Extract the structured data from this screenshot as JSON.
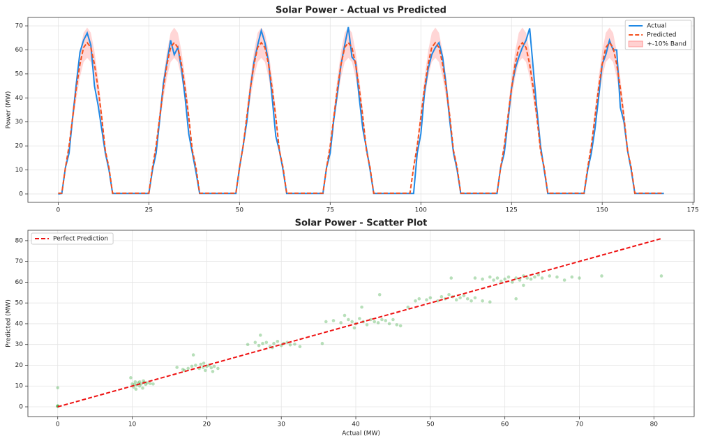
{
  "chart_data": [
    {
      "type": "line",
      "title": "Solar Power - Actual vs Predicted",
      "y_label": "Power (MW)",
      "x": [
        0,
        1,
        2,
        3,
        4,
        5,
        6,
        7,
        8,
        9,
        10,
        11,
        12,
        13,
        14,
        15,
        16,
        17,
        18,
        19,
        20,
        21,
        22,
        23,
        24,
        25,
        26,
        27,
        28,
        29,
        30,
        31,
        32,
        33,
        34,
        35,
        36,
        37,
        38,
        39,
        40,
        41,
        42,
        43,
        44,
        45,
        46,
        47,
        48,
        49,
        50,
        51,
        52,
        53,
        54,
        55,
        56,
        57,
        58,
        59,
        60,
        61,
        62,
        63,
        64,
        65,
        66,
        67,
        68,
        69,
        70,
        71,
        72,
        73,
        74,
        75,
        76,
        77,
        78,
        79,
        80,
        81,
        82,
        83,
        84,
        85,
        86,
        87,
        88,
        89,
        90,
        91,
        92,
        93,
        94,
        95,
        96,
        97,
        98,
        99,
        100,
        101,
        102,
        103,
        104,
        105,
        106,
        107,
        108,
        109,
        110,
        111,
        112,
        113,
        114,
        115,
        116,
        117,
        118,
        119,
        120,
        121,
        122,
        123,
        124,
        125,
        126,
        127,
        128,
        129,
        130,
        131,
        132,
        133,
        134,
        135,
        136,
        137,
        138,
        139,
        140,
        141,
        142,
        143,
        144,
        145,
        146,
        147,
        148,
        149,
        150,
        151,
        152,
        153,
        154,
        155,
        156,
        157,
        158,
        159,
        160,
        161,
        162,
        163,
        164,
        165,
        166,
        167
      ],
      "series": [
        {
          "name": "Actual",
          "color": "#1e88e5",
          "linestyle": "solid",
          "values": [
            0,
            0.2,
            11,
            17,
            32,
            46,
            59,
            64,
            67,
            62,
            45,
            37,
            27,
            17,
            10,
            0.2,
            0.2,
            0.2,
            0.2,
            0.2,
            0.2,
            0.2,
            0.2,
            0.2,
            0.2,
            0.2,
            10,
            17,
            31,
            46,
            55,
            64,
            58,
            61,
            52,
            40,
            25,
            17,
            9,
            0.2,
            0.2,
            0.2,
            0.2,
            0.2,
            0.2,
            0.2,
            0.2,
            0.2,
            0.2,
            0.2,
            11,
            20,
            30,
            44,
            55,
            62,
            68,
            63,
            55,
            40,
            24,
            18,
            10,
            0.2,
            0.2,
            0.2,
            0.2,
            0.2,
            0.2,
            0.2,
            0.2,
            0.2,
            0.2,
            0.2,
            11,
            17,
            31,
            42,
            54,
            62,
            69.5,
            57,
            55,
            40,
            27,
            19,
            10,
            0.2,
            0.2,
            0.2,
            0.2,
            0.2,
            0.2,
            0.2,
            0.2,
            0.2,
            0.2,
            0.2,
            0.2,
            17,
            25,
            42,
            52,
            58,
            61,
            63,
            57,
            45,
            30,
            17,
            10,
            0.2,
            0.2,
            0.2,
            0.2,
            0.2,
            0.2,
            0.2,
            0.2,
            0.2,
            0.2,
            0.2,
            11,
            17,
            30,
            44,
            52,
            57,
            61,
            64,
            69,
            52,
            35,
            20,
            10,
            0.2,
            0.2,
            0.2,
            0.2,
            0.2,
            0.2,
            0.2,
            0.2,
            0.2,
            0.2,
            0.2,
            10,
            17,
            27,
            40,
            54,
            58,
            64,
            60,
            60,
            36,
            30,
            18,
            10,
            0.2,
            0.2,
            0.2,
            0.2,
            0.2,
            0.2,
            0.2,
            0.2,
            0.2
          ]
        },
        {
          "name": "Predicted",
          "color": "#f4511e",
          "linestyle": "dashed",
          "values": [
            0.3,
            0.3,
            11,
            20,
            32,
            44,
            54,
            61,
            63,
            61,
            54,
            44,
            32,
            18,
            11,
            0.3,
            0.3,
            0.3,
            0.3,
            0.3,
            0.3,
            0.3,
            0.3,
            0.3,
            0.3,
            0.3,
            11,
            20,
            32,
            44,
            54,
            61,
            63,
            61,
            54,
            44,
            32,
            18,
            11,
            0.3,
            0.3,
            0.3,
            0.3,
            0.3,
            0.3,
            0.3,
            0.3,
            0.3,
            0.3,
            0.3,
            11,
            20,
            32,
            44,
            54,
            61,
            63,
            61,
            54,
            44,
            32,
            18,
            11,
            0.3,
            0.3,
            0.3,
            0.3,
            0.3,
            0.3,
            0.3,
            0.3,
            0.3,
            0.3,
            0.3,
            11,
            20,
            32,
            44,
            54,
            61,
            63,
            61,
            54,
            44,
            32,
            18,
            11,
            0.3,
            0.3,
            0.3,
            0.3,
            0.3,
            0.3,
            0.3,
            0.3,
            0.3,
            0.3,
            0.3,
            11,
            20,
            32,
            44,
            54,
            61,
            63,
            61,
            54,
            44,
            32,
            18,
            11,
            0.3,
            0.3,
            0.3,
            0.3,
            0.3,
            0.3,
            0.3,
            0.3,
            0.3,
            0.3,
            0.3,
            11,
            20,
            32,
            44,
            54,
            61,
            63,
            61,
            54,
            44,
            32,
            18,
            11,
            0.3,
            0.3,
            0.3,
            0.3,
            0.3,
            0.3,
            0.3,
            0.3,
            0.3,
            0.3,
            0.3,
            11,
            20,
            32,
            44,
            54,
            61,
            63,
            61,
            54,
            44,
            32,
            18,
            11,
            0.3,
            0.3,
            0.3,
            0.3,
            0.3,
            0.3,
            0.3,
            0.3,
            0.3
          ]
        }
      ],
      "band": {
        "name": "+-10% Band",
        "color": "#ff9999",
        "lower": [
          0.27,
          0.27,
          9.9,
          18,
          28.8,
          39.6,
          48.6,
          54.9,
          56.7,
          54.9,
          48.6,
          39.6,
          28.8,
          16.2,
          9.9,
          0.27,
          0.27,
          0.27,
          0.27,
          0.27,
          0.27,
          0.27,
          0.27,
          0.27,
          0.27,
          0.27,
          9.9,
          18,
          28.8,
          39.6,
          48.6,
          54.9,
          56.7,
          54.9,
          48.6,
          39.6,
          28.8,
          16.2,
          9.9,
          0.27,
          0.27,
          0.27,
          0.27,
          0.27,
          0.27,
          0.27,
          0.27,
          0.27,
          0.27,
          0.27,
          9.9,
          18,
          28.8,
          39.6,
          48.6,
          54.9,
          56.7,
          54.9,
          48.6,
          39.6,
          28.8,
          16.2,
          9.9,
          0.27,
          0.27,
          0.27,
          0.27,
          0.27,
          0.27,
          0.27,
          0.27,
          0.27,
          0.27,
          0.27,
          9.9,
          18,
          28.8,
          39.6,
          48.6,
          54.9,
          56.7,
          54.9,
          48.6,
          39.6,
          28.8,
          16.2,
          9.9,
          0.27,
          0.27,
          0.27,
          0.27,
          0.27,
          0.27,
          0.27,
          0.27,
          0.27,
          0.27,
          0.27,
          9.9,
          18,
          28.8,
          39.6,
          48.6,
          54.9,
          56.7,
          54.9,
          48.6,
          39.6,
          28.8,
          16.2,
          9.9,
          0.27,
          0.27,
          0.27,
          0.27,
          0.27,
          0.27,
          0.27,
          0.27,
          0.27,
          0.27,
          0.27,
          9.9,
          18,
          28.8,
          39.6,
          48.6,
          54.9,
          56.7,
          54.9,
          48.6,
          39.6,
          28.8,
          16.2,
          9.9,
          0.27,
          0.27,
          0.27,
          0.27,
          0.27,
          0.27,
          0.27,
          0.27,
          0.27,
          0.27,
          0.27,
          9.9,
          18,
          28.8,
          39.6,
          48.6,
          54.9,
          56.7,
          54.9,
          48.6,
          39.6,
          28.8,
          16.2,
          9.9,
          0.27,
          0.27,
          0.27,
          0.27,
          0.27,
          0.27,
          0.27,
          0.27,
          0.27
        ],
        "upper": [
          0.33,
          0.33,
          12.1,
          22,
          35.2,
          48.4,
          59.4,
          67.1,
          69.3,
          67.1,
          59.4,
          48.4,
          35.2,
          19.8,
          12.1,
          0.33,
          0.33,
          0.33,
          0.33,
          0.33,
          0.33,
          0.33,
          0.33,
          0.33,
          0.33,
          0.33,
          12.1,
          22,
          35.2,
          48.4,
          59.4,
          67.1,
          69.3,
          67.1,
          59.4,
          48.4,
          35.2,
          19.8,
          12.1,
          0.33,
          0.33,
          0.33,
          0.33,
          0.33,
          0.33,
          0.33,
          0.33,
          0.33,
          0.33,
          0.33,
          12.1,
          22,
          35.2,
          48.4,
          59.4,
          67.1,
          69.3,
          67.1,
          59.4,
          48.4,
          35.2,
          19.8,
          12.1,
          0.33,
          0.33,
          0.33,
          0.33,
          0.33,
          0.33,
          0.33,
          0.33,
          0.33,
          0.33,
          0.33,
          12.1,
          22,
          35.2,
          48.4,
          59.4,
          67.1,
          69.3,
          67.1,
          59.4,
          48.4,
          35.2,
          19.8,
          12.1,
          0.33,
          0.33,
          0.33,
          0.33,
          0.33,
          0.33,
          0.33,
          0.33,
          0.33,
          0.33,
          0.33,
          12.1,
          22,
          35.2,
          48.4,
          59.4,
          67.1,
          69.3,
          67.1,
          59.4,
          48.4,
          35.2,
          19.8,
          12.1,
          0.33,
          0.33,
          0.33,
          0.33,
          0.33,
          0.33,
          0.33,
          0.33,
          0.33,
          0.33,
          0.33,
          12.1,
          22,
          35.2,
          48.4,
          59.4,
          67.1,
          69.3,
          67.1,
          59.4,
          48.4,
          35.2,
          19.8,
          12.1,
          0.33,
          0.33,
          0.33,
          0.33,
          0.33,
          0.33,
          0.33,
          0.33,
          0.33,
          0.33,
          0.33,
          12.1,
          22,
          35.2,
          48.4,
          59.4,
          67.1,
          69.3,
          67.1,
          59.4,
          48.4,
          35.2,
          19.8,
          12.1,
          0.33,
          0.33,
          0.33,
          0.33,
          0.33,
          0.33,
          0.33,
          0.33,
          0.33
        ]
      },
      "xlim": [
        -8.35,
        175.35
      ],
      "xticks": [
        0,
        25,
        50,
        75,
        100,
        125,
        150,
        175
      ],
      "ylim": [
        -3.5,
        73.5
      ],
      "yticks": [
        0,
        10,
        20,
        30,
        40,
        50,
        60,
        70
      ],
      "grid": true,
      "legend": "upper right"
    },
    {
      "type": "scatter",
      "title": "Solar Power - Scatter Plot",
      "x_label": "Actual (MW)",
      "y_label": "Predicted (MW)",
      "points": {
        "color": "#4caf50",
        "x": [
          0,
          0,
          0,
          0,
          0,
          0,
          10,
          10.2,
          10.4,
          10.6,
          10.8,
          11,
          11,
          11.2,
          11.4,
          11.6,
          11.8,
          12,
          12.4,
          9.8,
          10.5,
          11.5,
          10.3,
          12.8,
          16,
          16.8,
          17.5,
          18,
          18.5,
          19,
          19.2,
          19.5,
          19.8,
          20,
          20.3,
          20.6,
          21,
          21.5,
          18.2,
          17,
          19.6,
          20.8,
          25.5,
          26.5,
          27,
          27.5,
          28,
          28.5,
          29,
          29.5,
          30,
          30.3,
          30.8,
          31.2,
          31.8,
          32.5,
          27.2,
          35.5,
          28.8,
          36,
          37,
          38,
          39,
          39.5,
          40,
          40.5,
          41,
          41.5,
          42,
          42.5,
          43,
          43.5,
          44,
          44.5,
          45,
          45.5,
          38.5,
          40.8,
          43.2,
          46,
          39.8,
          47,
          48,
          48.5,
          49.5,
          50,
          51,
          51.5,
          52,
          52.5,
          53,
          53.5,
          54,
          54.5,
          55,
          55.5,
          56,
          57,
          58,
          52.8,
          61.5,
          56,
          57,
          58,
          58.5,
          59,
          59.5,
          60,
          60.5,
          61,
          61.5,
          62,
          62.5,
          63,
          63.5,
          64,
          64.5,
          65,
          66,
          67,
          68,
          69,
          70,
          62.5,
          73,
          81
        ],
        "y": [
          0.3,
          0.3,
          0.3,
          0.3,
          9.2,
          0.5,
          11,
          9.5,
          12,
          10.5,
          11.5,
          10,
          12,
          11,
          9,
          11.8,
          10.8,
          11.5,
          11.2,
          14,
          8.5,
          12.5,
          10.8,
          11,
          19,
          18,
          18.5,
          19.5,
          20,
          18.5,
          20.5,
          19,
          17.5,
          19.5,
          20,
          18.8,
          19.5,
          18.5,
          25,
          17.5,
          21,
          17,
          30,
          31,
          29.5,
          30.5,
          31,
          29,
          30.5,
          31.5,
          29.5,
          30.5,
          31,
          29.8,
          30.2,
          29,
          34.5,
          30.5,
          28.5,
          41,
          41.5,
          40.5,
          42,
          41,
          40,
          42.5,
          41,
          39.5,
          42,
          41,
          40.5,
          42,
          41.5,
          40,
          42,
          39.5,
          44,
          48,
          54,
          39,
          38,
          48,
          51,
          52,
          51.5,
          52.5,
          51,
          53,
          52,
          54,
          53,
          51.5,
          52.5,
          53.5,
          52,
          51,
          52.5,
          51,
          50.5,
          62,
          52,
          62,
          61.5,
          62.5,
          61,
          62,
          60.5,
          61.5,
          62.5,
          60,
          62,
          61,
          63,
          62,
          61.5,
          62.5,
          63.5,
          62,
          63,
          62.5,
          61,
          62.5,
          62,
          58.5,
          63,
          63
        ]
      },
      "series": [
        {
          "name": "Perfect Prediction",
          "color": "#ee1111",
          "linestyle": "dashed",
          "x": [
            0,
            81
          ],
          "values": [
            0,
            81
          ]
        }
      ],
      "xlim": [
        -4,
        85.4
      ],
      "xticks": [
        0,
        10,
        20,
        30,
        40,
        50,
        60,
        70,
        80
      ],
      "ylim": [
        -4.7,
        85
      ],
      "yticks": [
        0,
        10,
        20,
        30,
        40,
        50,
        60,
        70,
        80
      ],
      "grid": true,
      "legend": "upper left"
    }
  ]
}
